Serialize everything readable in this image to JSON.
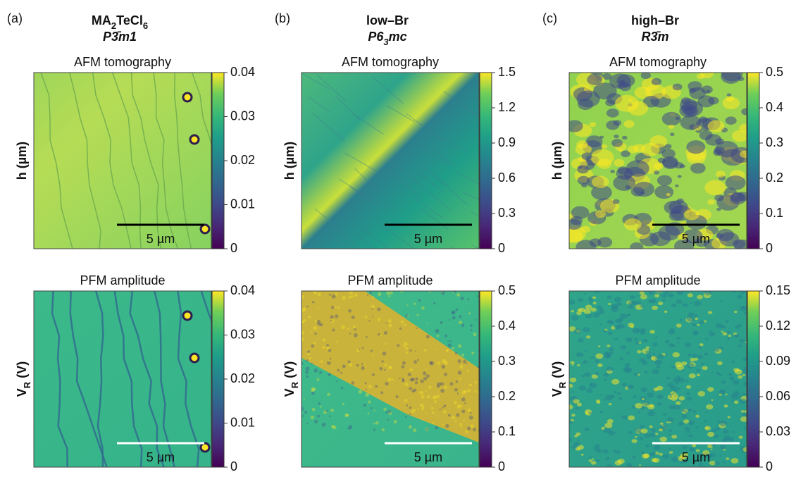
{
  "panels": [
    {
      "letter": "(a)",
      "title": [
        "MA",
        "2",
        "TeCl",
        "6"
      ],
      "space_group": [
        "P3̄m1"
      ],
      "rows": [
        {
          "label": "AFM tomography",
          "axis_label": [
            "h (µm)"
          ],
          "scale_bar": "5 µm",
          "colorbar": {
            "lim": [
              0,
              0.04
            ],
            "ticks": [
              0,
              0.01,
              0.02,
              0.03,
              0.04
            ]
          }
        },
        {
          "label": "PFM amplitude",
          "axis_label": [
            "V",
            "R",
            " (V)"
          ],
          "scale_bar": "5 µm",
          "colorbar": {
            "lim": [
              0,
              0.04
            ],
            "ticks": [
              0,
              0.01,
              0.02,
              0.03,
              0.04
            ]
          }
        }
      ]
    },
    {
      "letter": "(b)",
      "title": [
        "low–Br"
      ],
      "space_group": [
        "P6",
        "3",
        "mc"
      ],
      "rows": [
        {
          "label": "AFM tomography",
          "axis_label": [
            "h (µm)"
          ],
          "scale_bar": "5 µm",
          "colorbar": {
            "lim": [
              0,
              1.5
            ],
            "ticks": [
              0,
              0.3,
              0.6,
              0.9,
              1.2,
              1.5
            ]
          }
        },
        {
          "label": "PFM amplitude",
          "axis_label": [
            "V",
            "R",
            " (V)"
          ],
          "scale_bar": "5 µm",
          "colorbar": {
            "lim": [
              0,
              0.5
            ],
            "ticks": [
              0,
              0.1,
              0.2,
              0.3,
              0.4,
              0.5
            ]
          }
        }
      ]
    },
    {
      "letter": "(c)",
      "title": [
        "high–Br"
      ],
      "space_group": [
        "R3̄m"
      ],
      "rows": [
        {
          "label": "AFM tomography",
          "axis_label": [
            "h (µm)"
          ],
          "scale_bar": "5 µm",
          "colorbar": {
            "lim": [
              0,
              0.5
            ],
            "ticks": [
              0,
              0.1,
              0.2,
              0.3,
              0.4,
              0.5
            ]
          }
        },
        {
          "label": "PFM amplitude",
          "axis_label": [
            "V",
            "R",
            " (V)"
          ],
          "scale_bar": "5 µm",
          "colorbar": {
            "lim": [
              0,
              0.15
            ],
            "ticks": [
              0,
              0.03,
              0.06,
              0.09,
              0.12,
              0.15
            ]
          }
        }
      ]
    }
  ]
}
